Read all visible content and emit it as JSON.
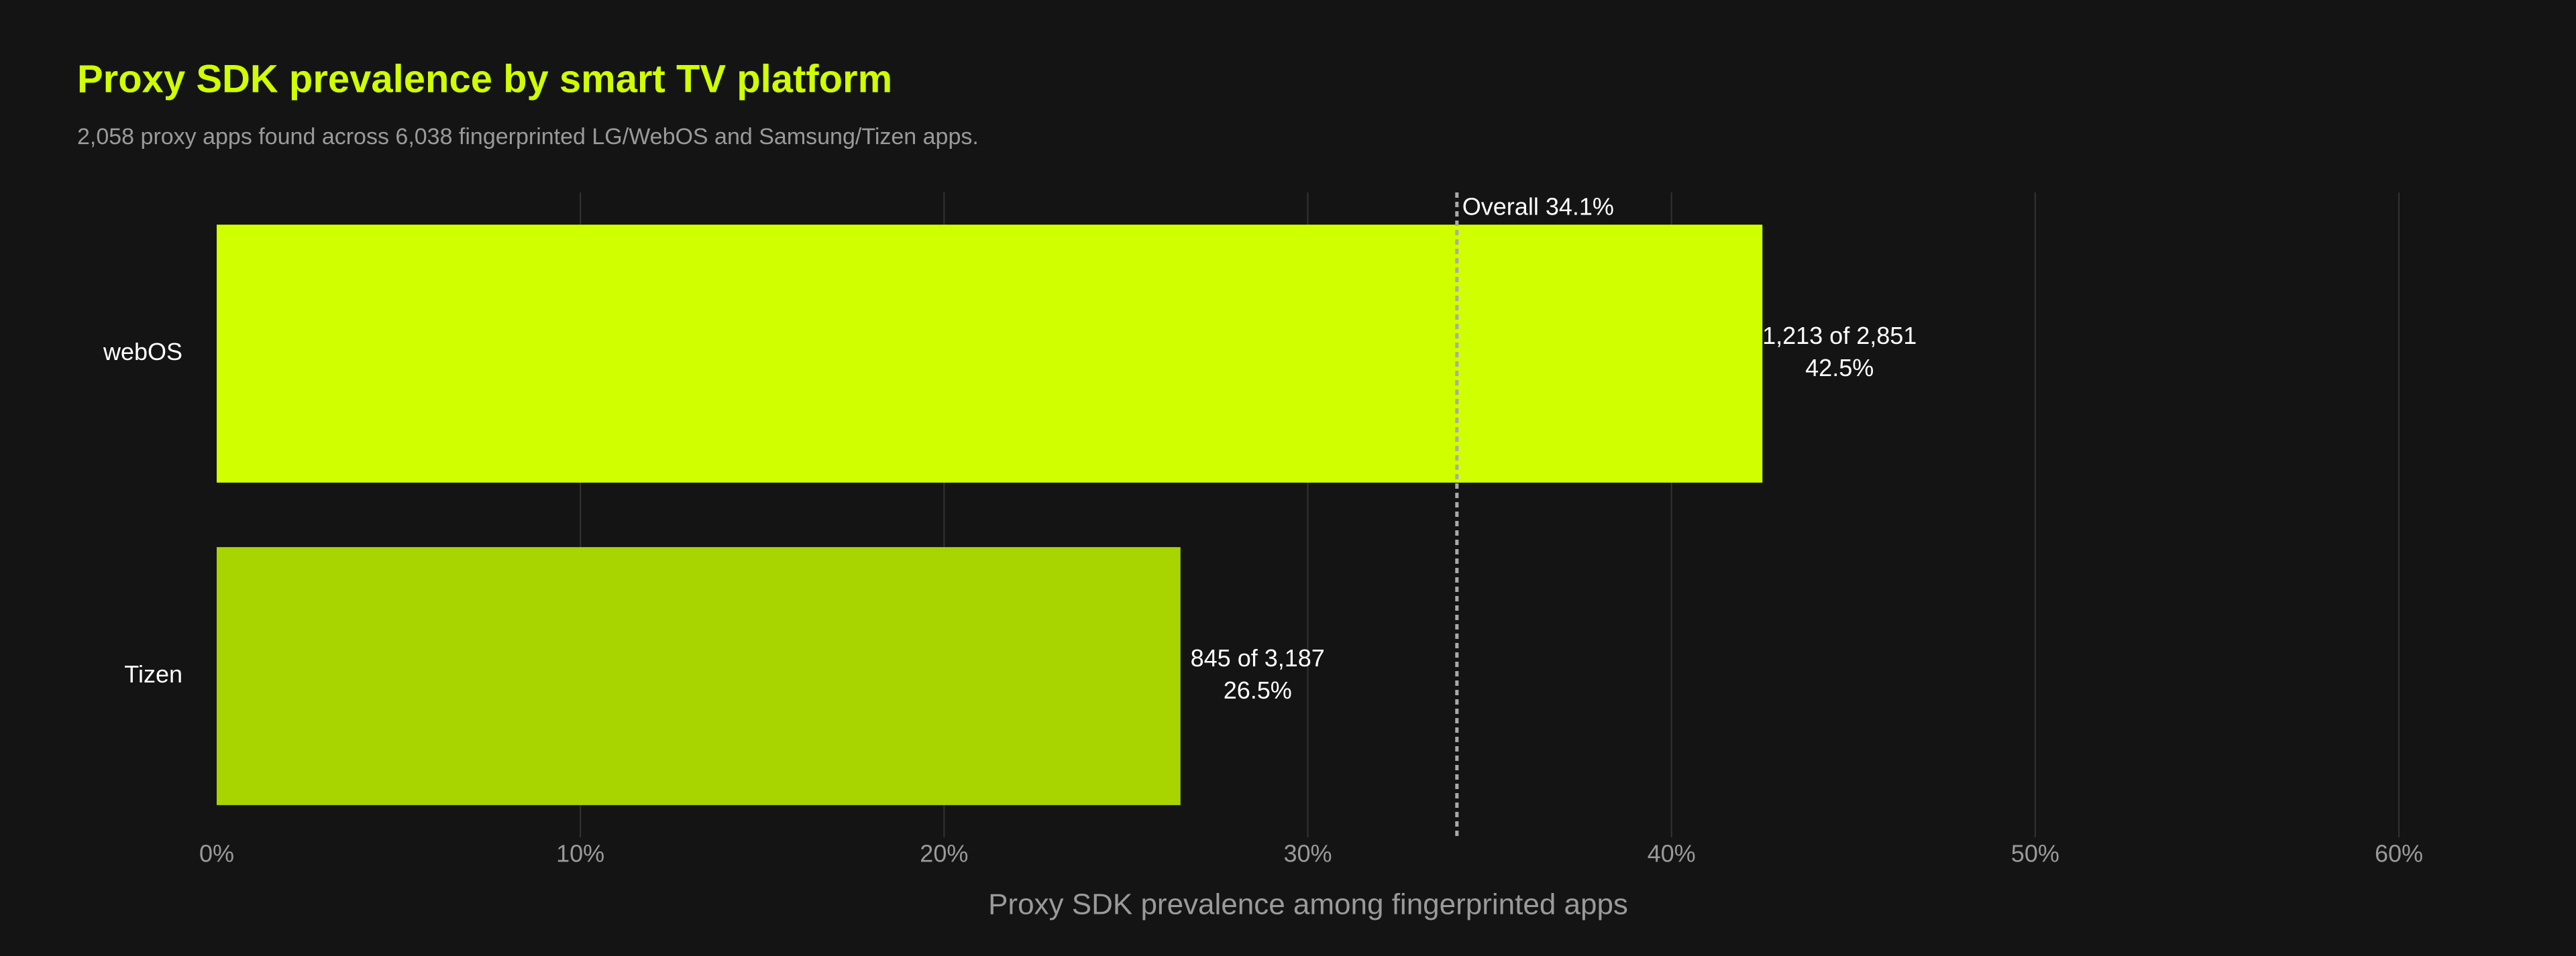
{
  "chart_data": {
    "type": "hbar",
    "title": "Proxy SDK prevalence by smart TV platform",
    "subtitle": "2,058 proxy apps found across 6,038 fingerprinted LG/WebOS and Samsung/Tizen apps.",
    "x_label": "Proxy SDK prevalence among fingerprinted apps",
    "categories": [
      "webOS",
      "Tizen"
    ],
    "values": [
      42.5,
      26.5
    ],
    "value_labels": [
      "42.5%",
      "26.5%"
    ],
    "count_labels": [
      "1,213 of 2,851",
      "845 of 3,187"
    ],
    "colors": [
      "#d0ff00",
      "#a8d400"
    ],
    "xlim": [
      0,
      60
    ],
    "xticks": [
      {
        "value": 0,
        "label": "0%"
      },
      {
        "value": 10,
        "label": "10%"
      },
      {
        "value": 20,
        "label": "20%"
      },
      {
        "value": 30,
        "label": "30%"
      },
      {
        "value": 40,
        "label": "40%"
      },
      {
        "value": 50,
        "label": "50%"
      },
      {
        "value": 60,
        "label": "60%"
      }
    ],
    "reference_line": {
      "value": 34.1,
      "label": "Overall 34.1%"
    },
    "grid": true
  }
}
